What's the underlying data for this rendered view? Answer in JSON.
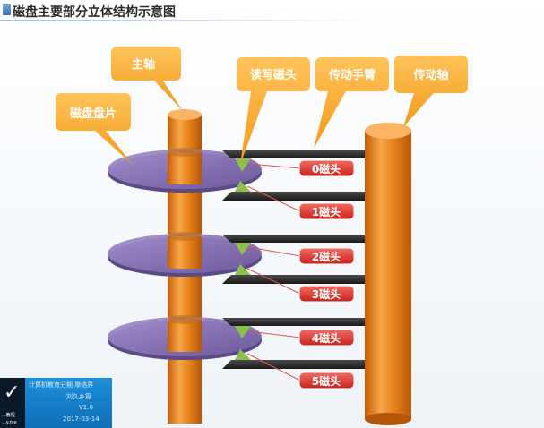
{
  "title": "磁盘主要部分立体结构示意图",
  "callouts": {
    "spindle": "主轴",
    "platter": "磁盘盘片",
    "rw_head": "读写磁头",
    "arm": "传动手臂",
    "actuator_axis": "传动轴"
  },
  "heads": [
    "0磁头",
    "1磁头",
    "2磁头",
    "3磁头",
    "4磁头",
    "5磁头"
  ],
  "info_card": {
    "logo_small": "...教程",
    "logo_url": "...y.me",
    "line1": "计算机教育分期 摩络界",
    "line2": "刘久乡篇",
    "line3": "V1.0",
    "line4": "2017-03-14"
  },
  "colors": {
    "callout_orange": "#f5a623",
    "platter_purple": "#8b78b8",
    "shaft_orange": "#e8851c",
    "head_label_red": "#d9332b",
    "arm_dark": "#2b2b2b",
    "head_green": "#8cc04a"
  }
}
